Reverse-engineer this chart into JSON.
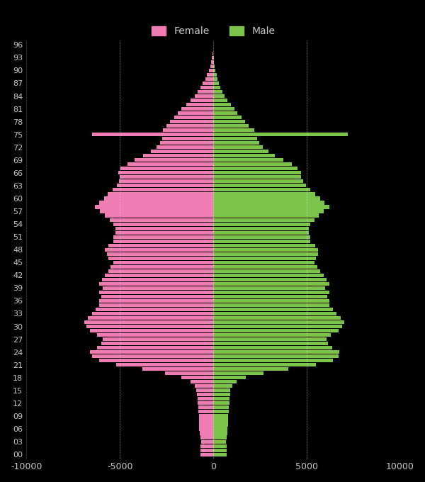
{
  "background_color": "#000000",
  "female_color": "#f07cb4",
  "male_color": "#7bc44c",
  "grid_color": "#ffffff",
  "text_color": "#c8c8c8",
  "xlim": [
    -10000,
    10000
  ],
  "xticks": [
    -10000,
    -5000,
    0,
    5000,
    10000
  ],
  "xtick_labels": [
    "-10000",
    "-5000",
    "0",
    "5000",
    "10000"
  ],
  "bar_height": 0.85,
  "ages": [
    0,
    1,
    2,
    3,
    4,
    5,
    6,
    7,
    8,
    9,
    10,
    11,
    12,
    13,
    14,
    15,
    16,
    17,
    18,
    19,
    20,
    21,
    22,
    23,
    24,
    25,
    26,
    27,
    28,
    29,
    30,
    31,
    32,
    33,
    34,
    35,
    36,
    37,
    38,
    39,
    40,
    41,
    42,
    43,
    44,
    45,
    46,
    47,
    48,
    49,
    50,
    51,
    52,
    53,
    54,
    55,
    56,
    57,
    58,
    59,
    60,
    61,
    62,
    63,
    64,
    65,
    66,
    67,
    68,
    69,
    70,
    71,
    72,
    73,
    74,
    75,
    76,
    77,
    78,
    79,
    80,
    81,
    82,
    83,
    84,
    85,
    86,
    87,
    88,
    89,
    90,
    91,
    92,
    93,
    94,
    95,
    96
  ],
  "female": [
    700,
    680,
    670,
    660,
    700,
    730,
    750,
    760,
    770,
    780,
    790,
    810,
    830,
    850,
    870,
    900,
    980,
    1200,
    1700,
    2600,
    3800,
    5200,
    6100,
    6500,
    6600,
    6200,
    6000,
    5900,
    6200,
    6600,
    6800,
    6900,
    6700,
    6500,
    6300,
    6100,
    6100,
    6000,
    6100,
    5900,
    6100,
    5950,
    5800,
    5600,
    5500,
    5350,
    5600,
    5700,
    5800,
    5600,
    5350,
    5350,
    5250,
    5250,
    5350,
    5550,
    5800,
    6050,
    6350,
    6100,
    5850,
    5650,
    5400,
    5150,
    5050,
    5000,
    5100,
    4950,
    4600,
    4200,
    3750,
    3350,
    3050,
    2850,
    2750,
    6500,
    2700,
    2500,
    2300,
    2100,
    1900,
    1700,
    1450,
    1200,
    1000,
    850,
    700,
    560,
    430,
    330,
    240,
    170,
    110,
    70,
    40,
    20,
    5
  ],
  "male": [
    730,
    710,
    700,
    690,
    720,
    750,
    770,
    780,
    790,
    800,
    810,
    830,
    850,
    870,
    890,
    920,
    1010,
    1250,
    1750,
    2700,
    4000,
    5500,
    6400,
    6700,
    6750,
    6350,
    6150,
    6050,
    6300,
    6700,
    6900,
    7000,
    6800,
    6600,
    6400,
    6200,
    6200,
    6100,
    6200,
    6000,
    6200,
    6050,
    5900,
    5700,
    5550,
    5400,
    5500,
    5600,
    5600,
    5450,
    5200,
    5200,
    5100,
    5100,
    5200,
    5400,
    5650,
    5900,
    6200,
    5950,
    5700,
    5450,
    5200,
    4950,
    4800,
    4700,
    4700,
    4500,
    4200,
    3750,
    3300,
    2950,
    2650,
    2450,
    2350,
    7200,
    2200,
    1900,
    1700,
    1500,
    1300,
    1150,
    950,
    750,
    600,
    490,
    390,
    300,
    230,
    170,
    120,
    80,
    50,
    28,
    14,
    6,
    0
  ]
}
